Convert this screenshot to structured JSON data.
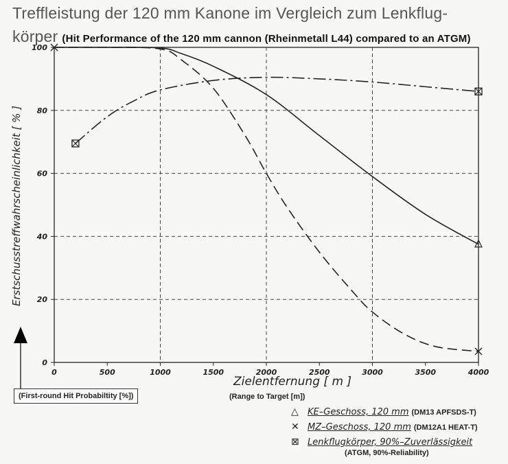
{
  "header": {
    "title_de_line1": "Treffleistung der 120 mm Kanone im Vergleich zum Lenkflug-",
    "title_de_line2": "körper",
    "title_en": "(Hit Performance of the 120 mm cannon (Rheinmetall L44) compared to an ATGM)"
  },
  "axes": {
    "ylabel": "Erstschusstreffwahrscheinlichkeit [ % ]",
    "ylabel_en": "(First-round Hit Probabiltity [%])",
    "xlabel": "Zielentfernung [ m ]",
    "xlabel_en": "(Range to Target [m])"
  },
  "legend": {
    "ke_symbol": "△",
    "ke_label": "KE–Geschoss, 120 mm",
    "ke_en": "(DM13 APFSDS-T)",
    "mz_symbol": "✕",
    "mz_label": "MZ–Geschoss, 120 mm",
    "mz_en": "(DM12A1 HEAT-T)",
    "atgm_symbol": "⊠",
    "atgm_label": "Lenkflugkörper, 90%–Zuverlässigkeit",
    "atgm_en": "(ATGM,   90%-Reliability)"
  },
  "chart_data": {
    "type": "line",
    "title": "Treffleistung der 120 mm Kanone im Vergleich zum Lenkflugkörper",
    "xlabel": "Zielentfernung [ m ]",
    "ylabel": "Erstschusstreffwahrscheinlichkeit [ % ]",
    "xlim": [
      0,
      4000
    ],
    "ylim": [
      0,
      100
    ],
    "xticks": [
      0,
      500,
      1000,
      1500,
      2000,
      2500,
      3000,
      3500,
      4000
    ],
    "yticks": [
      0,
      20,
      40,
      60,
      80,
      100
    ],
    "grid": true,
    "series": [
      {
        "name": "KE–Geschoss, 120 mm",
        "style": "solid",
        "marker": "triangle",
        "x": [
          0,
          500,
          1000,
          1200,
          1500,
          2000,
          2500,
          3000,
          3500,
          4000
        ],
        "y": [
          100,
          100,
          99.8,
          98,
          94,
          85,
          72,
          59,
          47,
          37.5
        ]
      },
      {
        "name": "MZ–Geschoss, 120 mm",
        "style": "dashed",
        "marker": "x",
        "x": [
          0,
          500,
          1000,
          1200,
          1500,
          1800,
          2000,
          2200,
          2500,
          2800,
          3000,
          3300,
          3600,
          4000
        ],
        "y": [
          100,
          100,
          99.5,
          96,
          87,
          72,
          60,
          49,
          35,
          23,
          16,
          9,
          5,
          3.5
        ]
      },
      {
        "name": "Lenkflugkörper, 90%–Zuverlässigkeit",
        "style": "dashdot",
        "marker": "boxed-x",
        "x": [
          200,
          500,
          750,
          1000,
          1500,
          2000,
          2500,
          3000,
          3500,
          4000
        ],
        "y": [
          69.5,
          78,
          83,
          86.5,
          89.5,
          90.5,
          90,
          89,
          87.5,
          86
        ]
      }
    ]
  }
}
